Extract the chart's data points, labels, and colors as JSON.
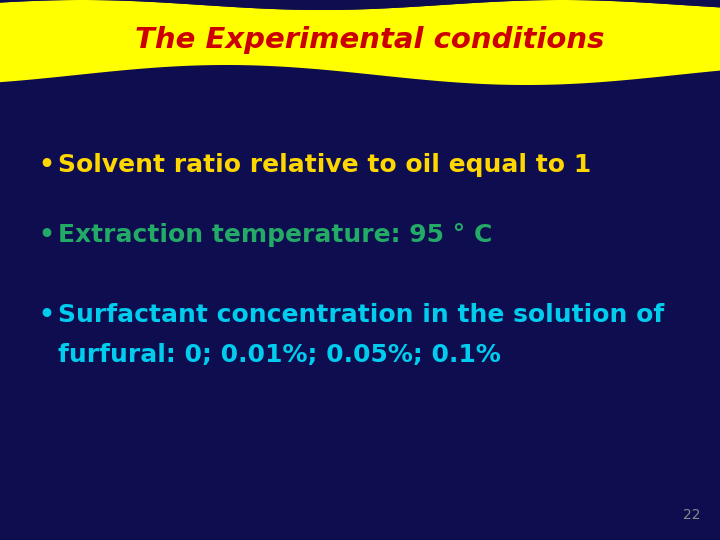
{
  "title": "The Experimental conditions",
  "title_color": "#cc0000",
  "title_bg_color": "#ffff00",
  "background_color": "#0d0d50",
  "bullet1": "Solvent ratio relative to oil equal to 1",
  "bullet1_color": "#ffd700",
  "bullet2": "Extraction temperature: 95 ° C",
  "bullet2_color": "#22aa66",
  "bullet3_line1": "Surfactant concentration in the solution of",
  "bullet3_line2": "furfural: 0; 0.01%; 0.05%; 0.1%",
  "bullet3_color": "#00ccee",
  "page_number": "22",
  "page_number_color": "#888888",
  "header_dark_color": "#0d0d50",
  "fig_width": 7.2,
  "fig_height": 5.4,
  "dpi": 100
}
